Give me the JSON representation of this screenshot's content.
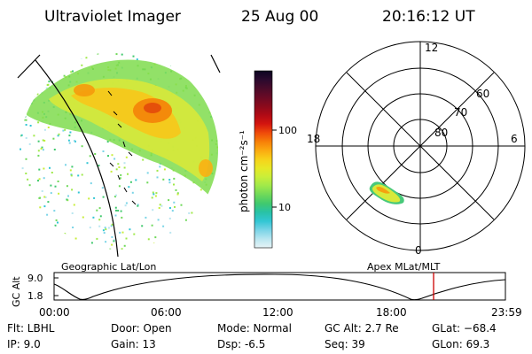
{
  "header": {
    "instrument": "Ultraviolet Imager",
    "date": "25 Aug 00",
    "time": "20:16:12 UT"
  },
  "colorbar": {
    "unit_label": "photon cm⁻²s⁻¹",
    "ticks": [
      "100",
      "10"
    ],
    "colors": [
      "#0b0320",
      "#2a0a2e",
      "#4a0b2a",
      "#6a0a25",
      "#8b0a1c",
      "#b00a15",
      "#d4150f",
      "#ef4a0a",
      "#f77f08",
      "#fbaa10",
      "#f7d21a",
      "#e7e826",
      "#c8ee3a",
      "#9fe94a",
      "#6fd95a",
      "#40c96e",
      "#28c2a7",
      "#33c6d4",
      "#7ad4e7",
      "#b9e6f0",
      "#e6f3f6"
    ]
  },
  "polar": {
    "labels": {
      "top": "12",
      "bottom": "0",
      "left": "18",
      "right": "6"
    },
    "lat_labels": [
      "60",
      "70",
      "80"
    ]
  },
  "timeline": {
    "title_left": "Geographic Lat/Lon",
    "title_right": "Apex MLat/MLT",
    "ylabel": "GC Alt",
    "yticks": [
      "9.0",
      "1.8"
    ],
    "xticks": [
      "00:00",
      "06:00",
      "12:00",
      "18:00",
      "23:59"
    ],
    "marker_color": "#cc0000"
  },
  "info": {
    "filter": "Flt: LBHL",
    "ip": "IP:  9.0",
    "door": "Door: Open",
    "gain": "Gain: 13",
    "mode": "Mode: Normal",
    "dsp": "Dsp:   -6.5",
    "gc_alt": "GC Alt: 2.7 Re",
    "seq": "Seq: 39",
    "glat": "GLat: −68.4",
    "glon": "GLon:  69.3"
  }
}
